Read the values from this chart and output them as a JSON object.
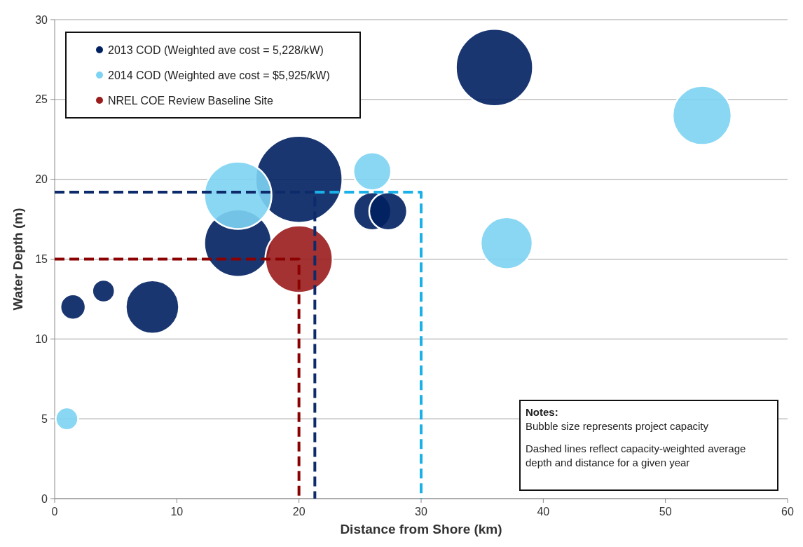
{
  "chart_data": {
    "type": "bubble",
    "xlabel": "Distance from Shore (km)",
    "ylabel": "Water Depth (m)",
    "xlim": [
      0,
      60
    ],
    "xticks": [
      0,
      10,
      20,
      30,
      40,
      50,
      60
    ],
    "ylim": [
      0,
      30
    ],
    "yticks": [
      0,
      5,
      10,
      15,
      20,
      25,
      30
    ],
    "grid": "y",
    "legend": "top left",
    "series": [
      {
        "name": "2013 COD (Weighted ave cost = 5,228/kW)",
        "color": "#002060",
        "x": [
          1.5,
          4,
          8,
          15,
          20,
          26,
          27.3,
          36
        ],
        "values": [
          12,
          13,
          12,
          16,
          20,
          18,
          18,
          27
        ],
        "sizes": [
          0.084,
          0.067,
          0.376,
          0.6,
          1,
          0.19,
          0.19,
          0.787
        ]
      },
      {
        "name": "2014 COD (Weighted ave cost = $5,925/kW)",
        "color": "#7dd3f3",
        "x": [
          1,
          15,
          26,
          37,
          53
        ],
        "values": [
          5,
          19,
          20.5,
          16,
          24
        ],
        "sizes": [
          0.067,
          0.6,
          0.19,
          0.356,
          0.459
        ]
      },
      {
        "name": "NREL COE Review Baseline Site",
        "color": "#9b1c1c",
        "x": [
          20
        ],
        "values": [
          15
        ],
        "sizes": [
          0.6
        ]
      },
      {
        "type": "line",
        "color": "#0d2b6b",
        "line_style": "dashed",
        "x": [
          0,
          21.3,
          21.3
        ],
        "values": [
          19.2,
          19.2,
          0
        ]
      },
      {
        "type": "line",
        "color": "#1ab0e8",
        "line_style": "dashed",
        "x": [
          21.3,
          30,
          30
        ],
        "values": [
          19.2,
          19.2,
          0
        ]
      },
      {
        "type": "line",
        "color": "#8b0000",
        "line_style": "dashed",
        "x": [
          0,
          20,
          20
        ],
        "values": [
          15,
          15,
          0
        ]
      }
    ],
    "annotations": [
      "Notes:",
      "Bubble size represents project capacity",
      "Dashed lines reflect capacity-weighted average depth and distance for a given year"
    ]
  }
}
